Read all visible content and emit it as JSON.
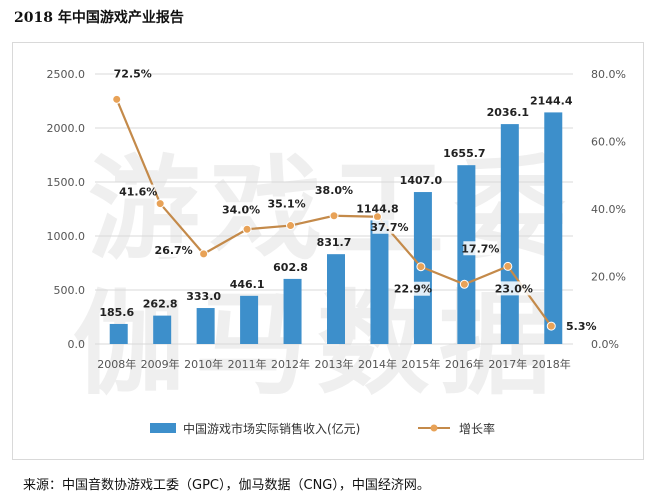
{
  "page_title": "2018 年中国游戏产业报告",
  "source_note": "来源：中国音数协游戏工委（GPC），伽马数据（CNG），中国经济网。",
  "watermark": {
    "top": "游戏工委",
    "bottom": "伽马数据"
  },
  "colors": {
    "bar": "#3d8fcb",
    "line": "#c48a4a",
    "marker": "#e8a257",
    "grid": "#d9d9d9",
    "axis_text": "#555555",
    "watermark": "#efefef"
  },
  "chart_data": {
    "type": "bar",
    "title": "",
    "categories": [
      "2008年",
      "2009年",
      "2010年",
      "2011年",
      "2012年",
      "2013年",
      "2014年",
      "2015年",
      "2016年",
      "2017年",
      "2018年"
    ],
    "series": [
      {
        "name": "中国游戏市场实际销售收入(亿元)",
        "type": "bar",
        "axis": "left",
        "values": [
          185.6,
          262.8,
          333.0,
          446.1,
          602.8,
          831.7,
          1144.8,
          1407.0,
          1655.7,
          2036.1,
          2144.4
        ],
        "labels": [
          "185.6",
          "262.8",
          "333.0",
          "446.1",
          "602.8",
          "831.7",
          "1144.8",
          "1407.0",
          "1655.7",
          "2036.1",
          "2144.4"
        ]
      },
      {
        "name": "增长率",
        "type": "line",
        "axis": "right",
        "values": [
          72.5,
          41.6,
          26.7,
          34.0,
          35.1,
          38.0,
          37.7,
          22.9,
          17.7,
          23.0,
          5.3
        ],
        "labels": [
          "72.5%",
          "41.6%",
          "26.7%",
          "34.0%",
          "35.1%",
          "38.0%",
          "37.7%",
          "22.9%",
          "17.7%",
          "23.0%",
          "5.3%"
        ]
      }
    ],
    "y_left": {
      "ticks": [
        0,
        500,
        1000,
        1500,
        2000,
        2500
      ],
      "tick_labels": [
        "0.0",
        "500.0",
        "1000.0",
        "1500.0",
        "2000.0",
        "2500.0"
      ],
      "ylim": [
        0,
        2500
      ]
    },
    "y_right": {
      "ticks": [
        0,
        20,
        40,
        60,
        80
      ],
      "tick_labels": [
        "0.0%",
        "20.0%",
        "40.0%",
        "60.0%",
        "80.0%"
      ],
      "ylim": [
        0,
        80
      ]
    },
    "grid": true,
    "legend_position": "bottom"
  }
}
